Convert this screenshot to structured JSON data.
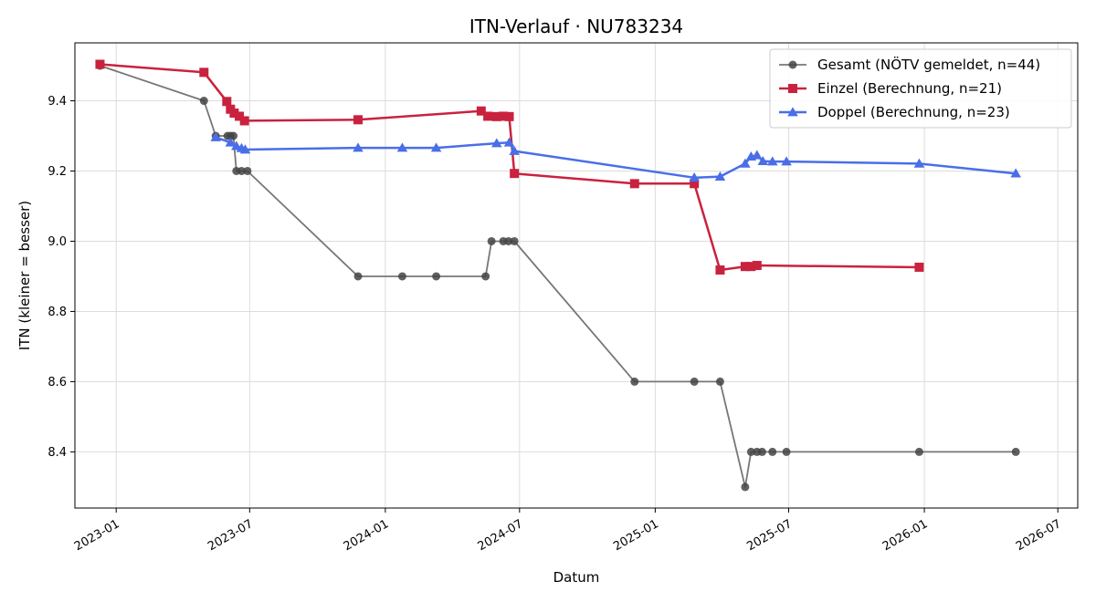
{
  "chart_data": {
    "type": "line",
    "title": "ITN-Verlauf · NU783234",
    "xlabel": "Datum",
    "ylabel": "ITN  (kleiner = besser)",
    "x_axis": "date",
    "xlim": [
      "2022-11-06",
      "2026-07-28"
    ],
    "ylim": [
      8.24,
      9.565
    ],
    "x_ticks": [
      "2023-01-01",
      "2023-07-01",
      "2024-01-01",
      "2024-07-01",
      "2025-01-01",
      "2025-07-01",
      "2026-01-01",
      "2026-07-01"
    ],
    "x_tick_labels": [
      "2023-01",
      "2023-07",
      "2024-01",
      "2024-07",
      "2025-01",
      "2025-07",
      "2026-01",
      "2026-07"
    ],
    "y_ticks": [
      8.4,
      8.6,
      8.8,
      9.0,
      9.2,
      9.4
    ],
    "y_tick_labels": [
      "8.4",
      "8.6",
      "8.8",
      "9.0",
      "9.2",
      "9.4"
    ],
    "grid": true,
    "legend_position": "top-right",
    "series": [
      {
        "name": "Gesamt (NÖTV gemeldet, n=44)",
        "color": "#777777",
        "marker": "circle",
        "marker_color": "#444444",
        "x": [
          "2022-12-10",
          "2023-04-30",
          "2023-05-16",
          "2023-06-01",
          "2023-06-05",
          "2023-06-09",
          "2023-06-13",
          "2023-06-20",
          "2023-06-28",
          "2023-11-25",
          "2024-01-24",
          "2024-03-10",
          "2024-05-16",
          "2024-05-24",
          "2024-06-09",
          "2024-06-16",
          "2024-06-24",
          "2024-12-04",
          "2025-02-23",
          "2025-03-30",
          "2025-05-03",
          "2025-05-11",
          "2025-05-19",
          "2025-05-26",
          "2025-06-09",
          "2025-06-28",
          "2025-12-25",
          "2026-05-05"
        ],
        "y": [
          9.5,
          9.4,
          9.3,
          9.3,
          9.3,
          9.3,
          9.2,
          9.2,
          9.2,
          8.9,
          8.9,
          8.9,
          8.9,
          9.0,
          9.0,
          9.0,
          9.0,
          8.6,
          8.6,
          8.6,
          8.3,
          8.4,
          8.4,
          8.4,
          8.4,
          8.4,
          8.4,
          8.4
        ]
      },
      {
        "name": "Einzel (Berechnung, n=21)",
        "color": "#c9223e",
        "marker": "square",
        "marker_color": "#c9223e",
        "x": [
          "2022-12-10",
          "2023-04-30",
          "2023-05-31",
          "2023-06-05",
          "2023-06-10",
          "2023-06-17",
          "2023-06-24",
          "2023-11-25",
          "2024-05-10",
          "2024-05-19",
          "2024-05-31",
          "2024-06-09",
          "2024-06-17",
          "2024-06-24",
          "2024-12-04",
          "2025-02-23",
          "2025-03-30",
          "2025-05-03",
          "2025-05-11",
          "2025-05-19",
          "2025-12-25"
        ],
        "y": [
          9.504,
          9.481,
          9.398,
          9.376,
          9.365,
          9.356,
          9.343,
          9.346,
          9.371,
          9.356,
          9.355,
          9.356,
          9.355,
          9.193,
          9.164,
          9.164,
          8.918,
          8.928,
          8.928,
          8.931,
          8.926
        ]
      },
      {
        "name": "Doppel (Berechnung, n=23)",
        "color": "#4a6ee8",
        "marker": "triangle",
        "marker_color": "#4a6ee8",
        "x": [
          "2023-05-16",
          "2023-06-05",
          "2023-06-13",
          "2023-06-20",
          "2023-06-25",
          "2023-11-25",
          "2024-01-24",
          "2024-03-10",
          "2024-05-31",
          "2024-06-17",
          "2024-06-24",
          "2025-02-23",
          "2025-03-30",
          "2025-05-03",
          "2025-05-11",
          "2025-05-19",
          "2025-05-27",
          "2025-06-09",
          "2025-06-28",
          "2025-12-25",
          "2026-05-05"
        ],
        "y": [
          9.296,
          9.281,
          9.271,
          9.265,
          9.261,
          9.266,
          9.266,
          9.266,
          9.279,
          9.281,
          9.257,
          9.181,
          9.184,
          9.221,
          9.241,
          9.245,
          9.228,
          9.227,
          9.227,
          9.221,
          9.193
        ]
      }
    ]
  }
}
